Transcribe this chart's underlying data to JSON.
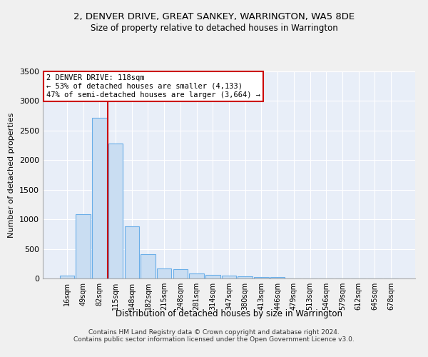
{
  "title": "2, DENVER DRIVE, GREAT SANKEY, WARRINGTON, WA5 8DE",
  "subtitle": "Size of property relative to detached houses in Warrington",
  "xlabel": "Distribution of detached houses by size in Warrington",
  "ylabel": "Number of detached properties",
  "bar_labels": [
    "16sqm",
    "49sqm",
    "82sqm",
    "115sqm",
    "148sqm",
    "182sqm",
    "215sqm",
    "248sqm",
    "281sqm",
    "314sqm",
    "347sqm",
    "380sqm",
    "413sqm",
    "446sqm",
    "479sqm",
    "513sqm",
    "546sqm",
    "579sqm",
    "612sqm",
    "645sqm",
    "678sqm"
  ],
  "bar_values": [
    50,
    1090,
    2720,
    2280,
    880,
    410,
    170,
    160,
    90,
    60,
    50,
    40,
    30,
    20,
    0,
    0,
    0,
    0,
    0,
    0,
    0
  ],
  "bar_color": "#c9ddf2",
  "bar_edge_color": "#6aaee8",
  "vline_position": 2.5,
  "annotation_line1": "2 DENVER DRIVE: 118sqm",
  "annotation_line2": "← 53% of detached houses are smaller (4,133)",
  "annotation_line3": "47% of semi-detached houses are larger (3,664) →",
  "annotation_box_color": "#ffffff",
  "annotation_box_edge": "#cc0000",
  "vline_color": "#cc0000",
  "ylim": [
    0,
    3500
  ],
  "yticks": [
    0,
    500,
    1000,
    1500,
    2000,
    2500,
    3000,
    3500
  ],
  "bg_color": "#e8eef8",
  "grid_color": "#ffffff",
  "footer_line1": "Contains HM Land Registry data © Crown copyright and database right 2024.",
  "footer_line2": "Contains public sector information licensed under the Open Government Licence v3.0."
}
